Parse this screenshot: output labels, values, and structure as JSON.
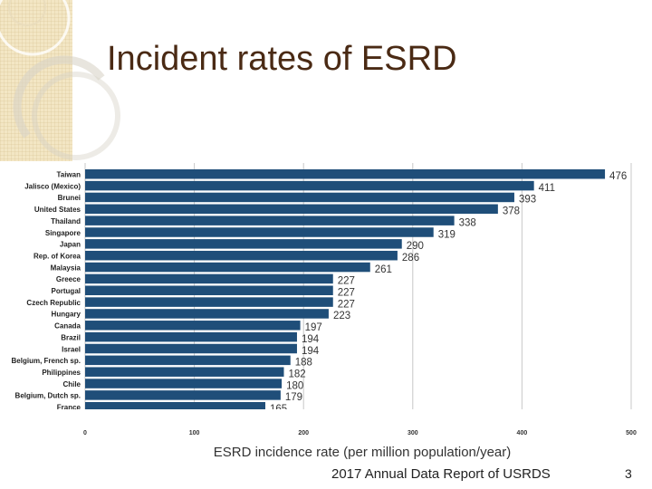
{
  "slide": {
    "title": "Incident rates of ESRD",
    "footer": "2017 Annual Data Report of USRDS",
    "page_number": "3"
  },
  "colors": {
    "bar": "#1f4e79",
    "grid": "#c8c8c8",
    "background_strip": "#f3e6c4",
    "title": "#4a2a14"
  },
  "chart_data": {
    "type": "bar",
    "orientation": "horizontal",
    "title": "",
    "xlabel": "ESRD incidence rate (per million population/year)",
    "ylabel": "",
    "xlim": [
      0,
      500
    ],
    "xticks": [
      0,
      100,
      200,
      300,
      400,
      500
    ],
    "grid": true,
    "categories": [
      "Taiwan",
      "Jalisco (Mexico)",
      "Brunei",
      "United States",
      "Thailand",
      "Singapore",
      "Japan",
      "Rep. of Korea",
      "Malaysia",
      "Greece",
      "Portugal",
      "Czech Republic",
      "Hungary",
      "Canada",
      "Brazil",
      "Israel",
      "Belgium, French sp.",
      "Philippines",
      "Chile",
      "Belgium, Dutch sp.",
      "France"
    ],
    "values": [
      476,
      411,
      393,
      378,
      338,
      319,
      290,
      286,
      261,
      227,
      227,
      227,
      223,
      197,
      194,
      194,
      188,
      182,
      180,
      179,
      165
    ],
    "value_labels": [
      "476",
      "411",
      "393",
      "378",
      "338",
      "319",
      "290",
      "286",
      "261",
      "227",
      "227",
      "227",
      "223",
      "197",
      "194",
      "194",
      "188",
      "182",
      "180",
      "179",
      "165"
    ]
  }
}
